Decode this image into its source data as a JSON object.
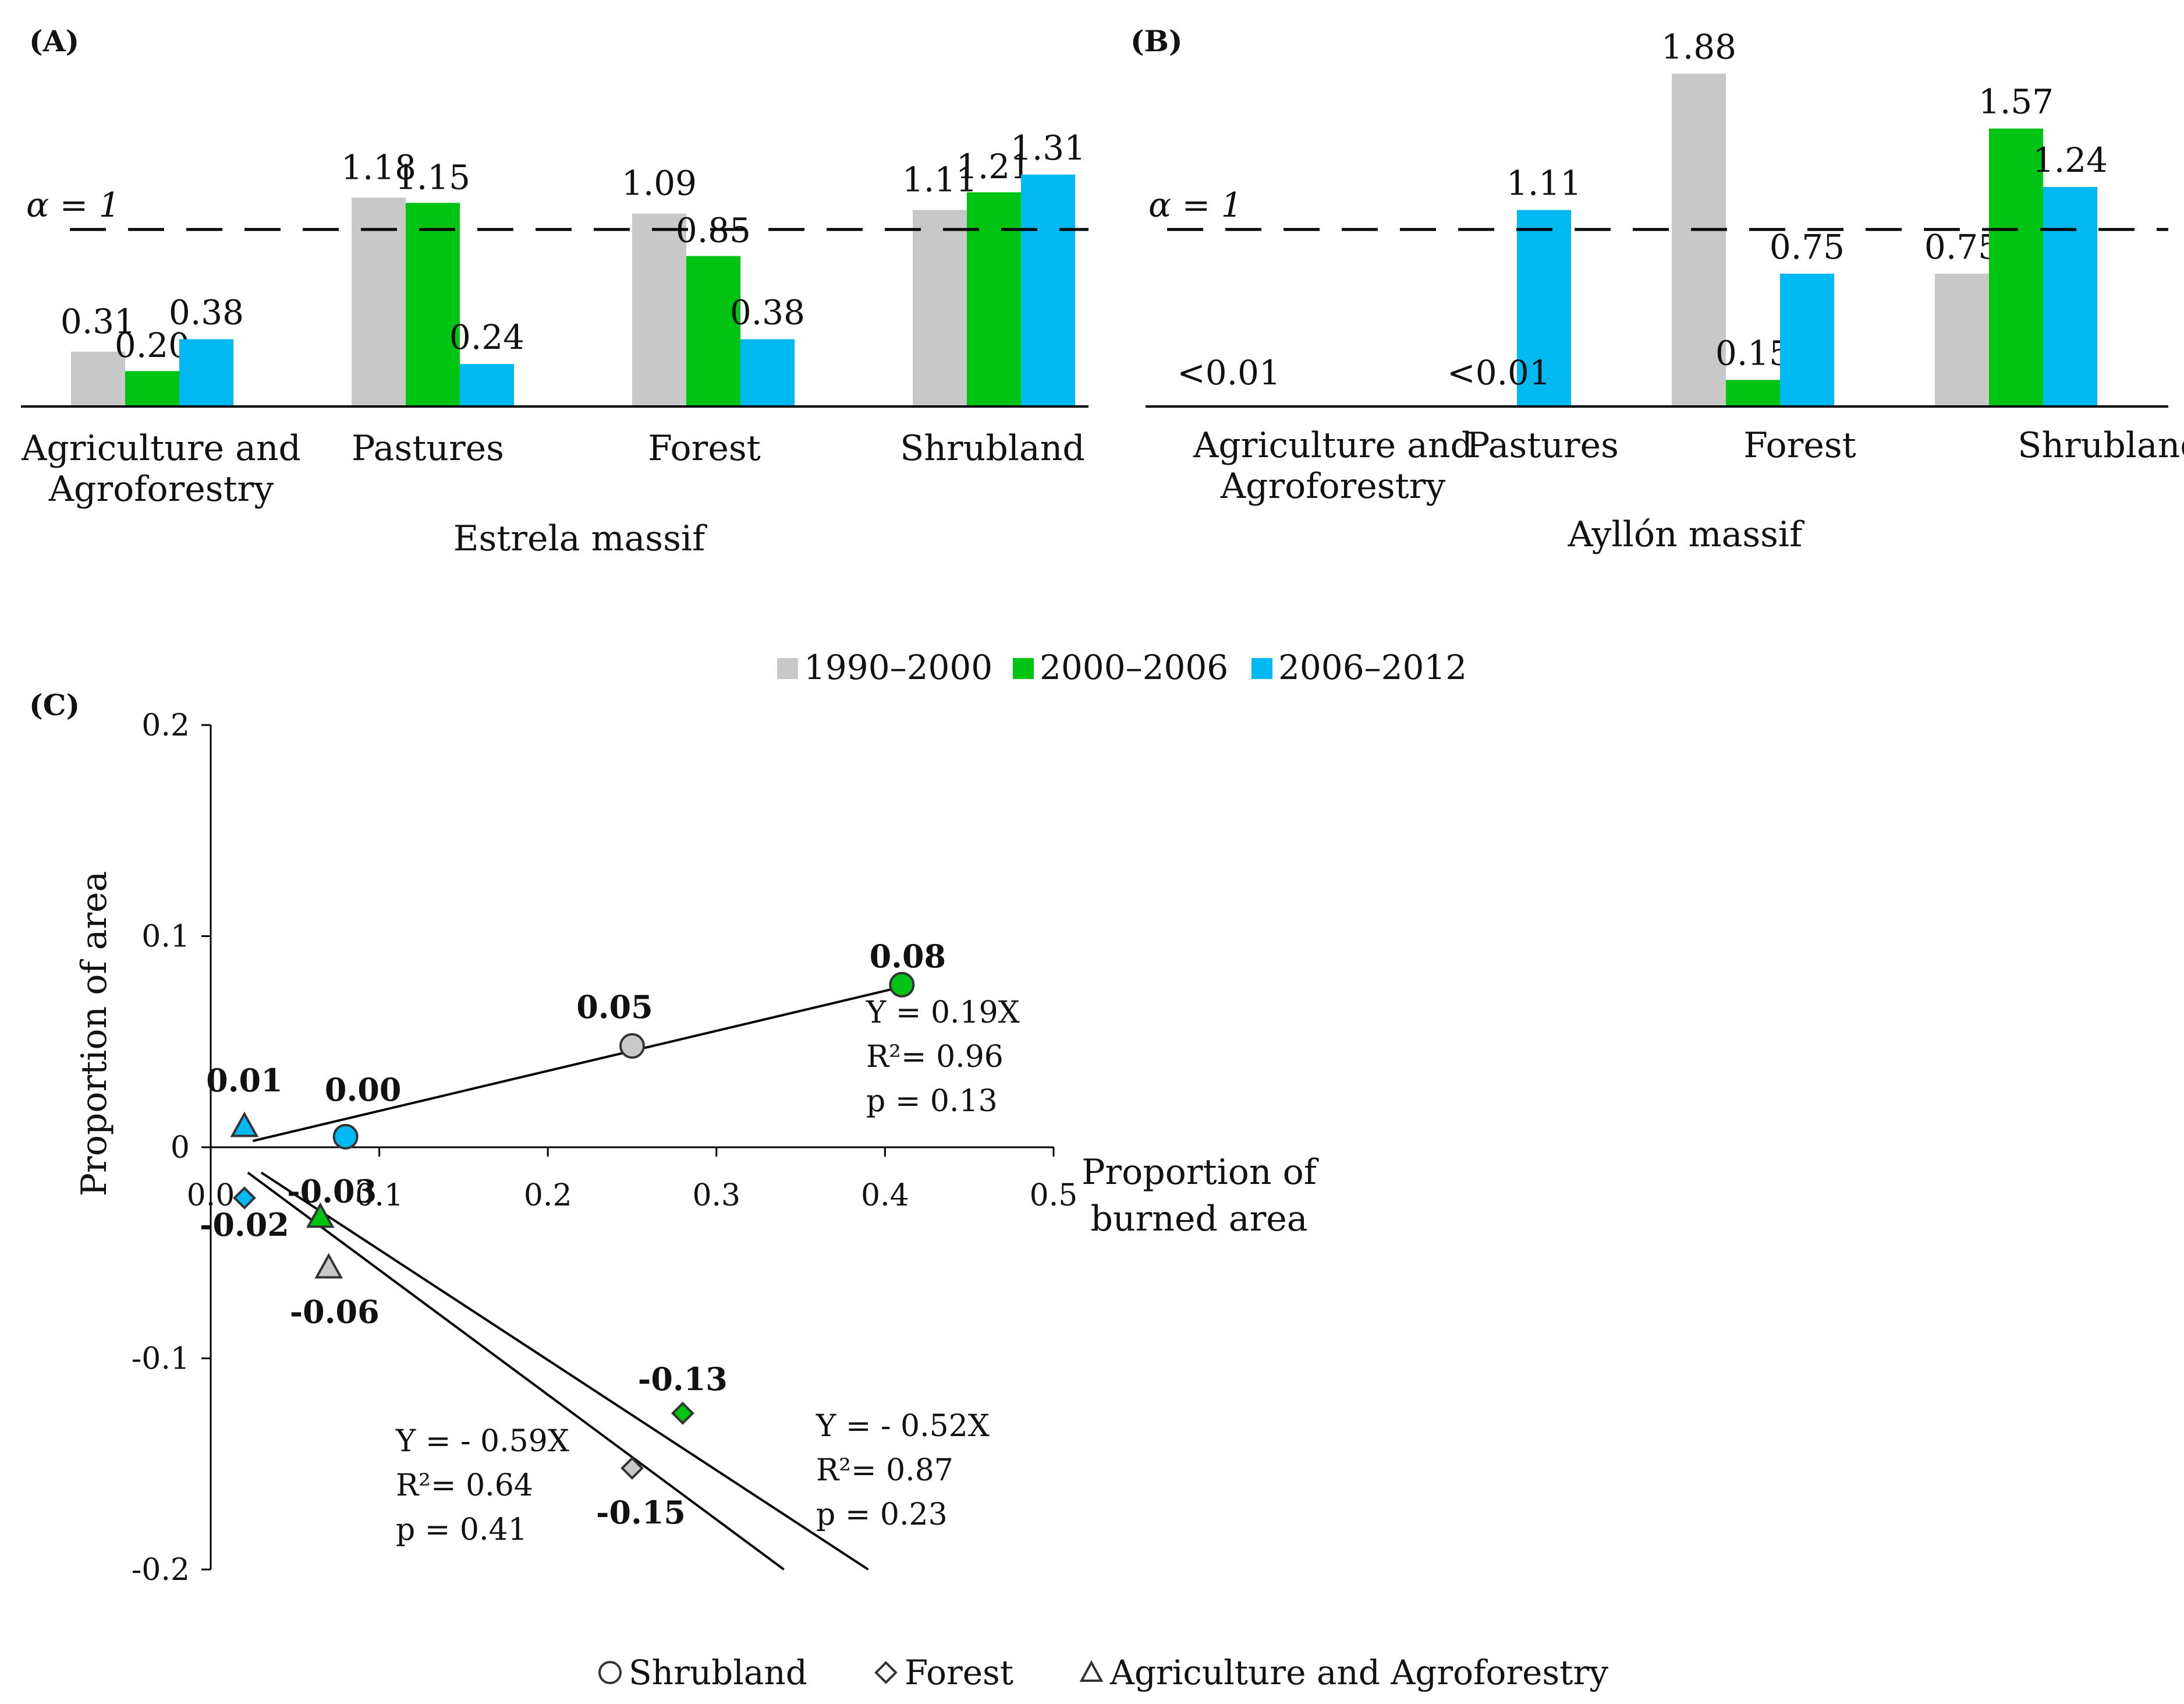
{
  "colors": {
    "p1": "#c8c8c8",
    "p2": "#00c414",
    "p3": "#00b9f2",
    "axis": "#000000",
    "text": "#111111"
  },
  "legend_periods": [
    "1990–2000",
    "2000–2006",
    "2006–2012"
  ],
  "chart_data": [
    {
      "panel_label": "(A)",
      "type": "bar",
      "title": "Estrela massif",
      "categories": [
        [
          "Agriculture and",
          "Agroforestry"
        ],
        [
          "Pastures"
        ],
        [
          "Forest"
        ],
        [
          "Shrubland"
        ]
      ],
      "series": [
        {
          "name": "1990–2000",
          "values": [
            0.31,
            1.18,
            1.09,
            1.11
          ],
          "labels": [
            "0.31",
            "1.18",
            "1.09",
            "1.11"
          ]
        },
        {
          "name": "2000–2006",
          "values": [
            0.2,
            1.15,
            0.85,
            1.21
          ],
          "labels": [
            "0.20",
            "1.15",
            "0.85",
            "1.21"
          ]
        },
        {
          "name": "2006–2012",
          "values": [
            0.38,
            0.24,
            0.38,
            1.31
          ],
          "labels": [
            "0.38",
            "0.24",
            "0.38",
            "1.31"
          ]
        }
      ],
      "reference_line": {
        "value": 1,
        "label": "α = 1"
      },
      "ylim": [
        0,
        2
      ]
    },
    {
      "panel_label": "(B)",
      "type": "bar",
      "title": "Ayllón massif",
      "categories": [
        [
          "Agriculture and",
          "Agroforestry"
        ],
        [
          "Pastures"
        ],
        [
          "Forest"
        ],
        [
          "Shrubland"
        ]
      ],
      "series": [
        {
          "name": "1990–2000",
          "values": [
            0,
            0,
            1.88,
            0.75
          ],
          "labels": [
            "",
            "",
            "1.88",
            "0.75"
          ]
        },
        {
          "name": "2000–2006",
          "values": [
            0,
            0,
            0.15,
            1.57
          ],
          "labels": [
            "",
            "",
            "0.15",
            "1.57"
          ]
        },
        {
          "name": "2006–2012",
          "values": [
            0,
            1.11,
            0.75,
            1.24
          ],
          "labels": [
            "",
            "1.11",
            "0.75",
            "1.24"
          ]
        }
      ],
      "category_notes": [
        "<0.01",
        "<0.01",
        "",
        ""
      ],
      "reference_line": {
        "value": 1,
        "label": "α = 1"
      },
      "ylim": [
        0,
        2
      ]
    },
    {
      "panel_label": "(C)",
      "type": "scatter",
      "xlabel": [
        "Proportion of",
        "burned area"
      ],
      "ylabel": "Proportion of area",
      "xlim": [
        0,
        0.5
      ],
      "ylim": [
        -0.2,
        0.2
      ],
      "xticks": [
        0,
        0.1,
        0.2,
        0.3,
        0.4,
        0.5
      ],
      "xtick_labels": [
        "0.0",
        "0.1",
        "0.2",
        "0.3",
        "0.4",
        "0.5"
      ],
      "yticks": [
        0.2,
        0.1,
        0,
        -0.1,
        -0.2
      ],
      "ytick_labels": [
        "0.2",
        "0.1",
        "0",
        "-0.1",
        "-0.2"
      ],
      "points": [
        {
          "marker": "triangle",
          "period": 2,
          "x": 0.02,
          "y": 0.01,
          "label": "0.01",
          "label_pos": "above"
        },
        {
          "marker": "circle",
          "period": 2,
          "x": 0.08,
          "y": 0.005,
          "label": "0.00",
          "label_pos": "above"
        },
        {
          "marker": "circle",
          "period": 0,
          "x": 0.25,
          "y": 0.048,
          "label": "0.05",
          "label_pos": "above"
        },
        {
          "marker": "circle",
          "period": 1,
          "x": 0.41,
          "y": 0.077,
          "label": "0.08",
          "label_pos": "above"
        },
        {
          "marker": "diamond",
          "period": 2,
          "x": 0.02,
          "y": -0.024,
          "label": "-0.02",
          "label_pos": "below"
        },
        {
          "marker": "triangle",
          "period": 1,
          "x": 0.065,
          "y": -0.033,
          "label": "-0.03",
          "label_pos": "above"
        },
        {
          "marker": "triangle",
          "period": 0,
          "x": 0.07,
          "y": -0.057,
          "label": "-0.06",
          "label_pos": "below"
        },
        {
          "marker": "diamond",
          "period": 1,
          "x": 0.28,
          "y": -0.126,
          "label": "-0.13",
          "label_pos": "above"
        },
        {
          "marker": "diamond",
          "period": 0,
          "x": 0.25,
          "y": -0.152,
          "label": "-0.15",
          "label_pos": "below"
        }
      ],
      "fit_lines": [
        {
          "name": "shrubland-fit",
          "from": [
            0.025,
            0.003
          ],
          "to": [
            0.41,
            0.076
          ]
        },
        {
          "name": "fit-059",
          "from": [
            0.022,
            -0.012
          ],
          "to": [
            0.34,
            -0.2
          ]
        },
        {
          "name": "fit-052",
          "from": [
            0.03,
            -0.012
          ],
          "to": [
            0.39,
            -0.2
          ]
        }
      ],
      "annotations": [
        {
          "name": "eq-019",
          "lines": [
            "Y = 0.19X",
            "R²= 0.96",
            "p = 0.13"
          ]
        },
        {
          "name": "eq-059",
          "lines": [
            "Y = - 0.59X",
            "R²= 0.64",
            "p = 0.41"
          ]
        },
        {
          "name": "eq-052",
          "lines": [
            "Y = - 0.52X",
            "R²= 0.87",
            "p = 0.23"
          ]
        }
      ],
      "legend": [
        {
          "marker": "circle",
          "label": "Shrubland"
        },
        {
          "marker": "diamond",
          "label": "Forest"
        },
        {
          "marker": "triangle",
          "label": "Agriculture and Agroforestry"
        }
      ]
    }
  ]
}
